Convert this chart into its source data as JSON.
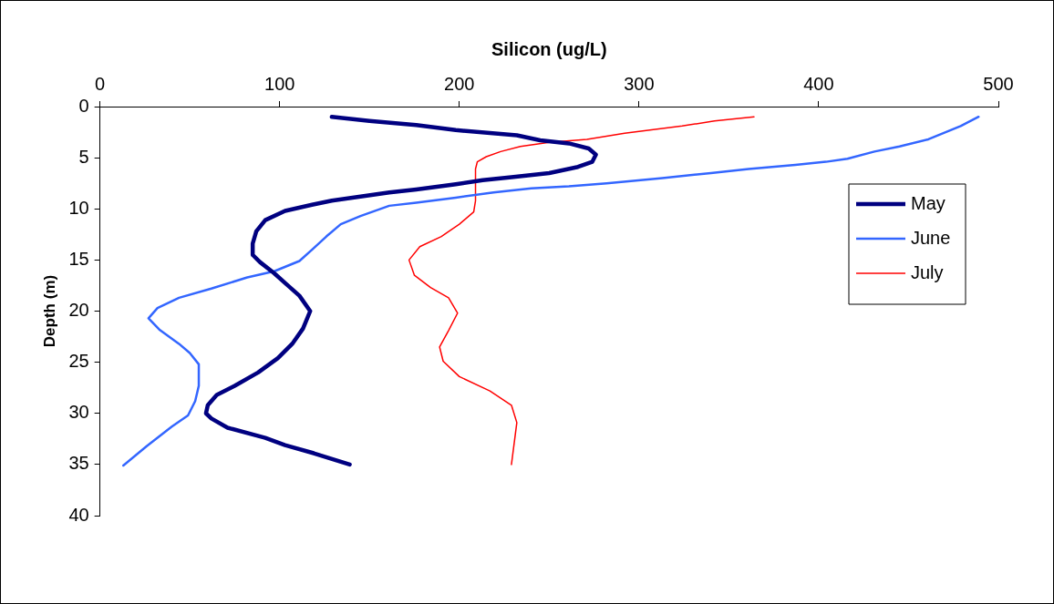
{
  "chart_data": {
    "type": "line",
    "xlabel": "Silicon (ug/L)",
    "ylabel": "Depth (m)",
    "xlim": [
      0,
      500
    ],
    "xticks": [
      0,
      100,
      200,
      300,
      400,
      500
    ],
    "ylim": [
      40,
      0
    ],
    "yticks": [
      0,
      5,
      10,
      15,
      20,
      25,
      30,
      35,
      40
    ],
    "grid": false,
    "legend": "right",
    "marker": "none",
    "line_style": "solid",
    "series": [
      {
        "name": "May",
        "color": "#000080",
        "x": [
          129,
          150,
          176,
          198,
          232,
          245,
          261,
          272,
          276,
          274,
          266,
          250,
          229,
          213,
          198,
          176,
          161,
          145,
          129,
          118,
          103,
          92,
          87,
          85,
          85,
          89,
          97,
          104,
          111,
          117,
          113,
          107,
          99,
          88,
          75,
          65,
          60,
          59,
          62,
          71,
          92,
          103,
          119,
          139
        ],
        "values": [
          1,
          1.4,
          1.8,
          2.3,
          2.8,
          3.3,
          3.6,
          4.1,
          4.7,
          5.4,
          5.9,
          6.5,
          6.9,
          7.2,
          7.6,
          8.1,
          8.4,
          8.8,
          9.2,
          9.6,
          10.2,
          11.1,
          12.2,
          13.4,
          14.5,
          15.2,
          16.3,
          17.4,
          18.5,
          20,
          21.7,
          23.2,
          24.6,
          26,
          27.3,
          28.2,
          29.2,
          30,
          30.5,
          31.4,
          32.4,
          33.1,
          33.9,
          35
        ]
      },
      {
        "name": "June",
        "color": "#3366ff",
        "x": [
          489,
          479,
          461,
          445,
          431,
          416,
          404,
          387,
          361,
          340,
          313,
          282,
          261,
          240,
          219,
          198,
          176,
          161,
          145,
          134,
          126,
          118,
          111,
          97,
          82,
          62,
          44,
          32,
          27,
          33,
          44,
          50,
          55,
          55,
          53,
          49,
          40,
          26,
          13
        ],
        "values": [
          1,
          1.9,
          3.2,
          3.9,
          4.4,
          5.1,
          5.4,
          5.7,
          6.1,
          6.5,
          7,
          7.5,
          7.8,
          8,
          8.4,
          8.9,
          9.4,
          9.7,
          10.7,
          11.5,
          12.7,
          14,
          15.1,
          16.1,
          16.7,
          17.8,
          18.7,
          19.7,
          20.7,
          21.8,
          23.2,
          24.1,
          25.2,
          27.3,
          28.8,
          30.2,
          31.3,
          33.2,
          35.1
        ]
      },
      {
        "name": "July",
        "color": "#ff0000",
        "x": [
          364,
          342,
          324,
          292,
          271,
          250,
          234,
          223,
          215,
          210,
          209,
          209,
          208,
          200,
          190,
          178,
          172,
          175,
          184,
          194,
          199,
          194,
          189,
          191,
          200,
          217,
          229,
          232,
          229
        ],
        "values": [
          1,
          1.4,
          1.9,
          2.6,
          3.2,
          3.5,
          3.9,
          4.4,
          4.9,
          5.4,
          6.1,
          9.2,
          10.3,
          11.5,
          12.7,
          13.7,
          15,
          16.5,
          17.7,
          18.7,
          20.2,
          21.9,
          23.5,
          24.9,
          26.4,
          27.8,
          29.2,
          30.9,
          35
        ]
      }
    ]
  }
}
